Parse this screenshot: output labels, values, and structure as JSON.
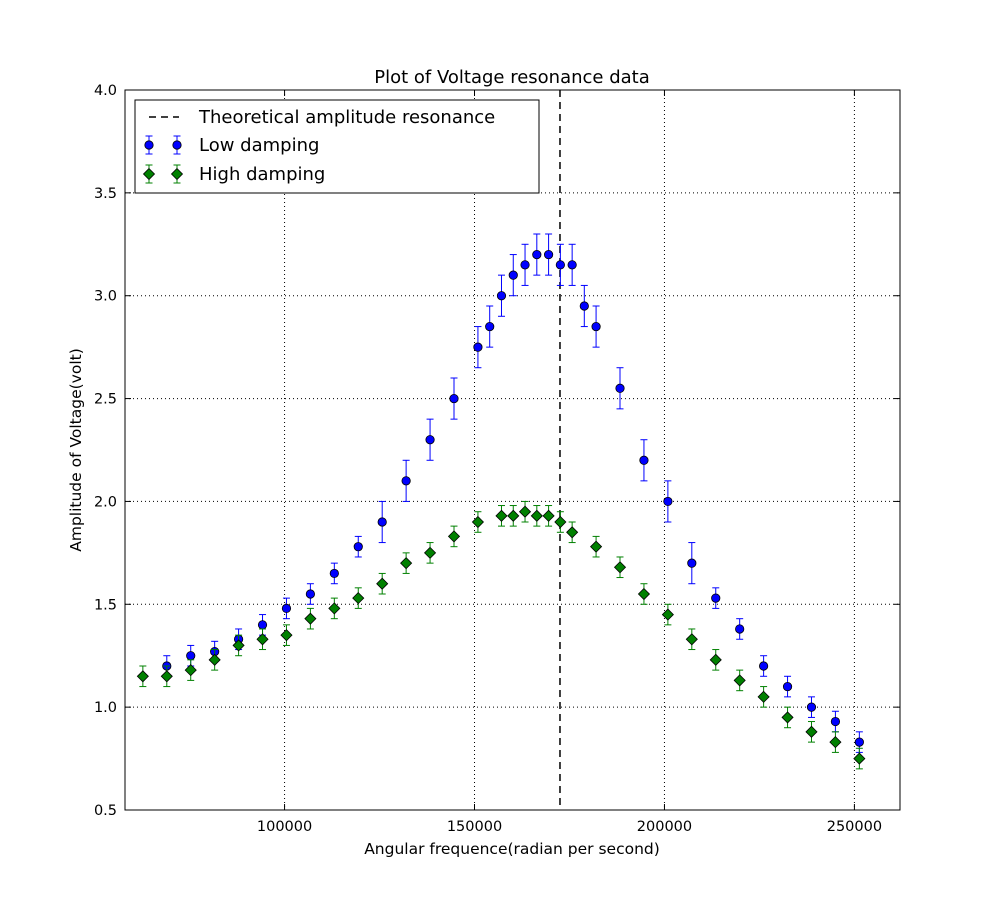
{
  "chart_data": {
    "type": "scatter",
    "title": "Plot of Voltage resonance data",
    "xlabel": "Angular frequence(radian per second)",
    "ylabel": "Amplitude of Voltage(volt)",
    "xlim": [
      58000,
      262000
    ],
    "ylim": [
      0.5,
      4.0
    ],
    "xticks": [
      100000,
      150000,
      200000,
      250000
    ],
    "xtick_labels": [
      "100000",
      "150000",
      "200000",
      "250000"
    ],
    "yticks": [
      0.5,
      1.0,
      1.5,
      2.0,
      2.5,
      3.0,
      3.5,
      4.0
    ],
    "ytick_labels": [
      "0.5",
      "1.0",
      "1.5",
      "2.0",
      "2.5",
      "3.0",
      "3.5",
      "4.0"
    ],
    "grid": true,
    "legend_position": "top-left",
    "vline": {
      "x": 172500,
      "name": "Theoretical amplitude resonance",
      "style": "dashed",
      "color": "#000000"
    },
    "series": [
      {
        "name": "Low damping",
        "marker": "circle",
        "color": "#0000ff",
        "points": [
          {
            "x": 69000,
            "y": 1.2,
            "err": 0.05
          },
          {
            "x": 75300,
            "y": 1.25,
            "err": 0.05
          },
          {
            "x": 81600,
            "y": 1.27,
            "err": 0.05
          },
          {
            "x": 87900,
            "y": 1.33,
            "err": 0.05
          },
          {
            "x": 94200,
            "y": 1.4,
            "err": 0.05
          },
          {
            "x": 100500,
            "y": 1.48,
            "err": 0.05
          },
          {
            "x": 106800,
            "y": 1.55,
            "err": 0.05
          },
          {
            "x": 113100,
            "y": 1.65,
            "err": 0.05
          },
          {
            "x": 119400,
            "y": 1.78,
            "err": 0.05
          },
          {
            "x": 125700,
            "y": 1.9,
            "err": 0.1
          },
          {
            "x": 132000,
            "y": 2.1,
            "err": 0.1
          },
          {
            "x": 138300,
            "y": 2.3,
            "err": 0.1
          },
          {
            "x": 144600,
            "y": 2.5,
            "err": 0.1
          },
          {
            "x": 150900,
            "y": 2.75,
            "err": 0.1
          },
          {
            "x": 154000,
            "y": 2.85,
            "err": 0.1
          },
          {
            "x": 157100,
            "y": 3.0,
            "err": 0.1
          },
          {
            "x": 160200,
            "y": 3.1,
            "err": 0.1
          },
          {
            "x": 163300,
            "y": 3.15,
            "err": 0.1
          },
          {
            "x": 166400,
            "y": 3.2,
            "err": 0.1
          },
          {
            "x": 169500,
            "y": 3.2,
            "err": 0.1
          },
          {
            "x": 172600,
            "y": 3.15,
            "err": 0.1
          },
          {
            "x": 175700,
            "y": 3.15,
            "err": 0.1
          },
          {
            "x": 178900,
            "y": 2.95,
            "err": 0.1
          },
          {
            "x": 182000,
            "y": 2.85,
            "err": 0.1
          },
          {
            "x": 188300,
            "y": 2.55,
            "err": 0.1
          },
          {
            "x": 194600,
            "y": 2.2,
            "err": 0.1
          },
          {
            "x": 200900,
            "y": 2.0,
            "err": 0.1
          },
          {
            "x": 207200,
            "y": 1.7,
            "err": 0.1
          },
          {
            "x": 213500,
            "y": 1.53,
            "err": 0.05
          },
          {
            "x": 219800,
            "y": 1.38,
            "err": 0.05
          },
          {
            "x": 226100,
            "y": 1.2,
            "err": 0.05
          },
          {
            "x": 232400,
            "y": 1.1,
            "err": 0.05
          },
          {
            "x": 238700,
            "y": 1.0,
            "err": 0.05
          },
          {
            "x": 245000,
            "y": 0.93,
            "err": 0.05
          },
          {
            "x": 251300,
            "y": 0.83,
            "err": 0.05
          }
        ]
      },
      {
        "name": "High damping",
        "marker": "diamond",
        "color": "#008000",
        "points": [
          {
            "x": 62700,
            "y": 1.15,
            "err": 0.05
          },
          {
            "x": 69000,
            "y": 1.15,
            "err": 0.05
          },
          {
            "x": 75300,
            "y": 1.18,
            "err": 0.05
          },
          {
            "x": 81600,
            "y": 1.23,
            "err": 0.05
          },
          {
            "x": 87900,
            "y": 1.3,
            "err": 0.05
          },
          {
            "x": 94200,
            "y": 1.33,
            "err": 0.05
          },
          {
            "x": 100500,
            "y": 1.35,
            "err": 0.05
          },
          {
            "x": 106800,
            "y": 1.43,
            "err": 0.05
          },
          {
            "x": 113100,
            "y": 1.48,
            "err": 0.05
          },
          {
            "x": 119400,
            "y": 1.53,
            "err": 0.05
          },
          {
            "x": 125700,
            "y": 1.6,
            "err": 0.05
          },
          {
            "x": 132000,
            "y": 1.7,
            "err": 0.05
          },
          {
            "x": 138300,
            "y": 1.75,
            "err": 0.05
          },
          {
            "x": 144600,
            "y": 1.83,
            "err": 0.05
          },
          {
            "x": 150900,
            "y": 1.9,
            "err": 0.05
          },
          {
            "x": 157100,
            "y": 1.93,
            "err": 0.05
          },
          {
            "x": 160200,
            "y": 1.93,
            "err": 0.05
          },
          {
            "x": 163300,
            "y": 1.95,
            "err": 0.05
          },
          {
            "x": 166400,
            "y": 1.93,
            "err": 0.05
          },
          {
            "x": 169500,
            "y": 1.93,
            "err": 0.05
          },
          {
            "x": 172600,
            "y": 1.9,
            "err": 0.05
          },
          {
            "x": 175700,
            "y": 1.85,
            "err": 0.05
          },
          {
            "x": 182000,
            "y": 1.78,
            "err": 0.05
          },
          {
            "x": 188300,
            "y": 1.68,
            "err": 0.05
          },
          {
            "x": 194600,
            "y": 1.55,
            "err": 0.05
          },
          {
            "x": 200900,
            "y": 1.45,
            "err": 0.05
          },
          {
            "x": 207200,
            "y": 1.33,
            "err": 0.05
          },
          {
            "x": 213500,
            "y": 1.23,
            "err": 0.05
          },
          {
            "x": 219800,
            "y": 1.13,
            "err": 0.05
          },
          {
            "x": 226100,
            "y": 1.05,
            "err": 0.05
          },
          {
            "x": 232400,
            "y": 0.95,
            "err": 0.05
          },
          {
            "x": 238700,
            "y": 0.88,
            "err": 0.05
          },
          {
            "x": 245000,
            "y": 0.83,
            "err": 0.05
          },
          {
            "x": 251300,
            "y": 0.75,
            "err": 0.05
          }
        ]
      }
    ]
  }
}
